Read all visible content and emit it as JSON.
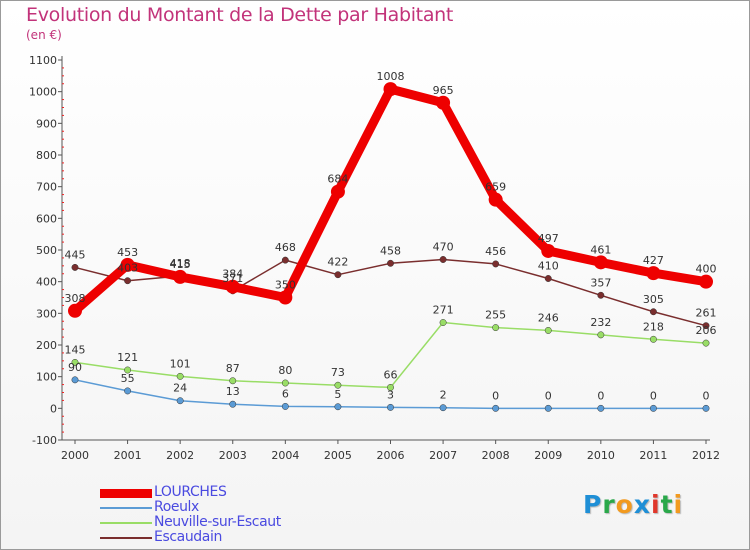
{
  "title": "Evolution du Montant de la Dette par Habitant",
  "subtitle": "(en €)",
  "logo": {
    "text": "Proxiti",
    "letters": [
      {
        "ch": "P",
        "color": "#1f8fd6"
      },
      {
        "ch": "r",
        "color": "#2aa84a"
      },
      {
        "ch": "o",
        "color": "#f29a1f"
      },
      {
        "ch": "x",
        "color": "#1f8fd6"
      },
      {
        "ch": "i",
        "color": "#e0372b"
      },
      {
        "ch": "t",
        "color": "#2aa84a"
      },
      {
        "ch": "i",
        "color": "#f29a1f"
      }
    ]
  },
  "chart_data": {
    "type": "line",
    "title": "Evolution du Montant de la Dette par Habitant",
    "ylabel": "(en €)",
    "xlabel": "",
    "ylim": [
      -100,
      1100
    ],
    "y_ticks": [
      -100,
      0,
      100,
      200,
      300,
      400,
      500,
      600,
      700,
      800,
      900,
      1000,
      1100
    ],
    "categories": [
      "2000",
      "2001",
      "2002",
      "2003",
      "2004",
      "2005",
      "2006",
      "2007",
      "2008",
      "2009",
      "2010",
      "2011",
      "2012"
    ],
    "grid": false,
    "legend_position": "bottom-left",
    "series": [
      {
        "name": "LOURCHES",
        "color": "#ee0000",
        "weight": "thick",
        "values": [
          308,
          453,
          415,
          384,
          350,
          684,
          1008,
          965,
          659,
          497,
          461,
          427,
          400
        ],
        "labels": [
          "308",
          "453",
          "415",
          "384",
          "350",
          "684",
          "1008",
          "965",
          "659",
          "497",
          "461",
          "427",
          "400"
        ]
      },
      {
        "name": "Roeulx",
        "color": "#5b9bd5",
        "weight": "thin",
        "values": [
          90,
          55,
          24,
          13,
          6,
          5,
          3,
          2,
          0,
          0,
          0,
          0,
          0
        ],
        "labels": [
          "90",
          "55",
          "24",
          "13",
          "6",
          "5",
          "3",
          "2",
          "0",
          "0",
          "0",
          "0",
          "0"
        ]
      },
      {
        "name": "Neuville-sur-Escaut",
        "color": "#99dd66",
        "weight": "thin",
        "values": [
          145,
          121,
          101,
          87,
          80,
          73,
          66,
          271,
          255,
          246,
          232,
          218,
          206
        ],
        "labels": [
          "145",
          "121",
          "101",
          "87",
          "80",
          "73",
          "66",
          "271",
          "255",
          "246",
          "232",
          "218",
          "206"
        ]
      },
      {
        "name": "Escaudain",
        "color": "#7a2e2e",
        "weight": "thin",
        "values": [
          445,
          403,
          418,
          371,
          468,
          422,
          458,
          470,
          456,
          410,
          357,
          305,
          261
        ],
        "labels": [
          "445",
          "403",
          "418",
          "371",
          "468",
          "422",
          "458",
          "470",
          "456",
          "410",
          "357",
          "305",
          "261"
        ]
      }
    ]
  }
}
